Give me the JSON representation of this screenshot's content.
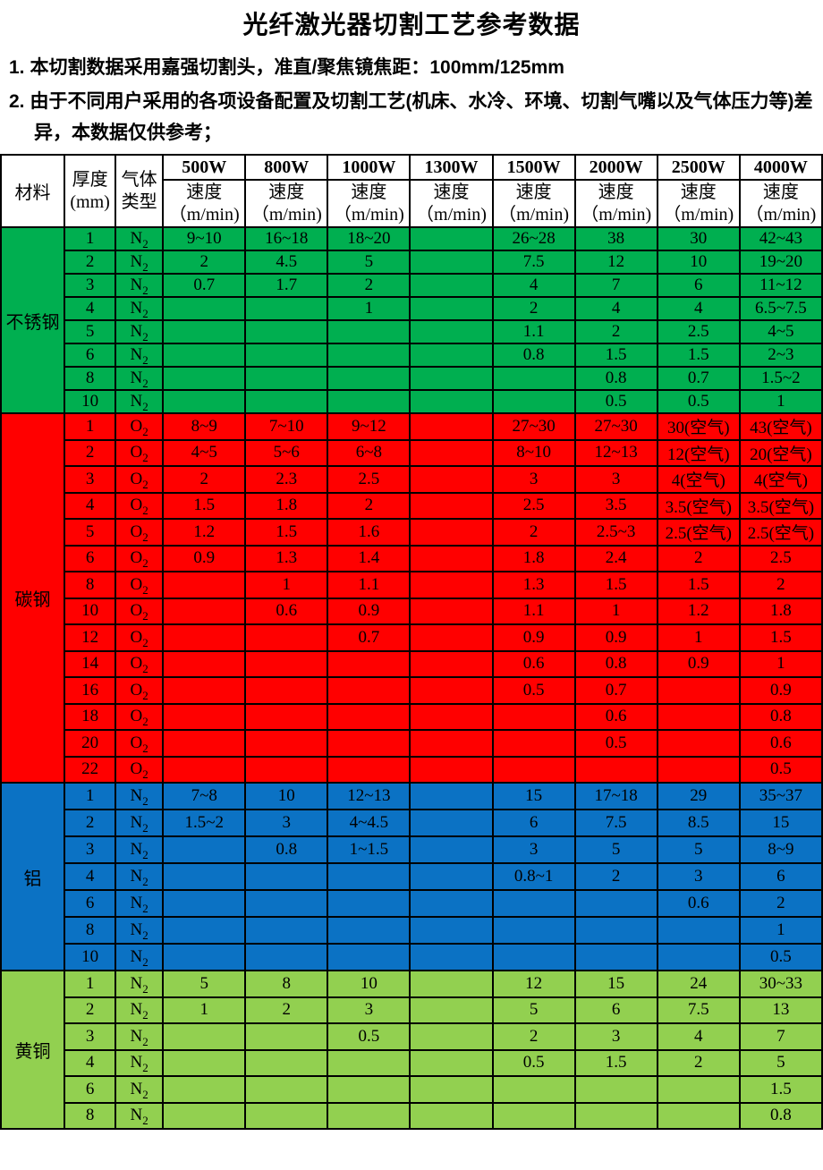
{
  "title": "光纤激光器切割工艺参考数据",
  "notes": [
    {
      "num": "1.",
      "text": "本切割数据采用嘉强切割头，准直/聚焦镜焦距：100mm/125mm"
    },
    {
      "num": "2.",
      "text": "由于不同用户采用的各项设备配置及切割工艺(机床、水冷、环境、切割气嘴以及气体压力等)差异，本数据仅供参考；"
    }
  ],
  "table": {
    "header": {
      "material": "材料",
      "thickness_line1": "厚度",
      "thickness_line2": "(mm)",
      "gas_line1": "气体",
      "gas_line2": "类型",
      "powers": [
        "500W",
        "800W",
        "1000W",
        "1300W",
        "1500W",
        "2000W",
        "2500W",
        "4000W"
      ],
      "speed_line1": "速度",
      "speed_line2": "（m/min)"
    },
    "sections": [
      {
        "material": "不锈钢",
        "color": "#00AF50",
        "rows": [
          {
            "thickness": "1",
            "gas": "N2",
            "speeds": [
              "9~10",
              "16~18",
              "18~20",
              "",
              "26~28",
              "38",
              "30",
              "42~43"
            ]
          },
          {
            "thickness": "2",
            "gas": "N2",
            "speeds": [
              "2",
              "4.5",
              "5",
              "",
              "7.5",
              "12",
              "10",
              "19~20"
            ]
          },
          {
            "thickness": "3",
            "gas": "N2",
            "speeds": [
              "0.7",
              "1.7",
              "2",
              "",
              "4",
              "7",
              "6",
              "11~12"
            ]
          },
          {
            "thickness": "4",
            "gas": "N2",
            "speeds": [
              "",
              "",
              "1",
              "",
              "2",
              "4",
              "4",
              "6.5~7.5"
            ]
          },
          {
            "thickness": "5",
            "gas": "N2",
            "speeds": [
              "",
              "",
              "",
              "",
              "1.1",
              "2",
              "2.5",
              "4~5"
            ]
          },
          {
            "thickness": "6",
            "gas": "N2",
            "speeds": [
              "",
              "",
              "",
              "",
              "0.8",
              "1.5",
              "1.5",
              "2~3"
            ]
          },
          {
            "thickness": "8",
            "gas": "N2",
            "speeds": [
              "",
              "",
              "",
              "",
              "",
              "0.8",
              "0.7",
              "1.5~2"
            ]
          },
          {
            "thickness": "10",
            "gas": "N2",
            "speeds": [
              "",
              "",
              "",
              "",
              "",
              "0.5",
              "0.5",
              "1"
            ]
          }
        ]
      },
      {
        "material": "碳钢",
        "color": "#FF0000",
        "rows": [
          {
            "thickness": "1",
            "gas": "O2",
            "speeds": [
              "8~9",
              "7~10",
              "9~12",
              "",
              "27~30",
              "27~30",
              "30(空气)",
              "43(空气)"
            ]
          },
          {
            "thickness": "2",
            "gas": "O2",
            "speeds": [
              "4~5",
              "5~6",
              "6~8",
              "",
              "8~10",
              "12~13",
              "12(空气)",
              "20(空气)"
            ]
          },
          {
            "thickness": "3",
            "gas": "O2",
            "speeds": [
              "2",
              "2.3",
              "2.5",
              "",
              "3",
              "3",
              "4(空气)",
              "4(空气)"
            ]
          },
          {
            "thickness": "4",
            "gas": "O2",
            "speeds": [
              "1.5",
              "1.8",
              "2",
              "",
              "2.5",
              "3.5",
              "3.5(空气)",
              "3.5(空气)"
            ]
          },
          {
            "thickness": "5",
            "gas": "O2",
            "speeds": [
              "1.2",
              "1.5",
              "1.6",
              "",
              "2",
              "2.5~3",
              "2.5(空气)",
              "2.5(空气)"
            ]
          },
          {
            "thickness": "6",
            "gas": "O2",
            "speeds": [
              "0.9",
              "1.3",
              "1.4",
              "",
              "1.8",
              "2.4",
              "2",
              "2.5"
            ]
          },
          {
            "thickness": "8",
            "gas": "O2",
            "speeds": [
              "",
              "1",
              "1.1",
              "",
              "1.3",
              "1.5",
              "1.5",
              "2"
            ]
          },
          {
            "thickness": "10",
            "gas": "O2",
            "speeds": [
              "",
              "0.6",
              "0.9",
              "",
              "1.1",
              "1",
              "1.2",
              "1.8"
            ]
          },
          {
            "thickness": "12",
            "gas": "O2",
            "speeds": [
              "",
              "",
              "0.7",
              "",
              "0.9",
              "0.9",
              "1",
              "1.5"
            ]
          },
          {
            "thickness": "14",
            "gas": "O2",
            "speeds": [
              "",
              "",
              "",
              "",
              "0.6",
              "0.8",
              "0.9",
              "1"
            ]
          },
          {
            "thickness": "16",
            "gas": "O2",
            "speeds": [
              "",
              "",
              "",
              "",
              "0.5",
              "0.7",
              "",
              "0.9"
            ]
          },
          {
            "thickness": "18",
            "gas": "O2",
            "speeds": [
              "",
              "",
              "",
              "",
              "",
              "0.6",
              "",
              "0.8"
            ]
          },
          {
            "thickness": "20",
            "gas": "O2",
            "speeds": [
              "",
              "",
              "",
              "",
              "",
              "0.5",
              "",
              "0.6"
            ]
          },
          {
            "thickness": "22",
            "gas": "O2",
            "speeds": [
              "",
              "",
              "",
              "",
              "",
              "",
              "",
              "0.5"
            ]
          }
        ]
      },
      {
        "material": "铝",
        "color": "#0B72C4",
        "rows": [
          {
            "thickness": "1",
            "gas": "N2",
            "speeds": [
              "7~8",
              "10",
              "12~13",
              "",
              "15",
              "17~18",
              "29",
              "35~37"
            ]
          },
          {
            "thickness": "2",
            "gas": "N2",
            "speeds": [
              "1.5~2",
              "3",
              "4~4.5",
              "",
              "6",
              "7.5",
              "8.5",
              "15"
            ]
          },
          {
            "thickness": "3",
            "gas": "N2",
            "speeds": [
              "",
              "0.8",
              "1~1.5",
              "",
              "3",
              "5",
              "5",
              "8~9"
            ]
          },
          {
            "thickness": "4",
            "gas": "N2",
            "speeds": [
              "",
              "",
              "",
              "",
              "0.8~1",
              "2",
              "3",
              "6"
            ]
          },
          {
            "thickness": "6",
            "gas": "N2",
            "speeds": [
              "",
              "",
              "",
              "",
              "",
              "",
              "0.6",
              "2"
            ]
          },
          {
            "thickness": "8",
            "gas": "N2",
            "speeds": [
              "",
              "",
              "",
              "",
              "",
              "",
              "",
              "1"
            ]
          },
          {
            "thickness": "10",
            "gas": "N2",
            "speeds": [
              "",
              "",
              "",
              "",
              "",
              "",
              "",
              "0.5"
            ]
          }
        ]
      },
      {
        "material": "黄铜",
        "color": "#92D050",
        "rows": [
          {
            "thickness": "1",
            "gas": "N2",
            "speeds": [
              "5",
              "8",
              "10",
              "",
              "12",
              "15",
              "24",
              "30~33"
            ]
          },
          {
            "thickness": "2",
            "gas": "N2",
            "speeds": [
              "1",
              "2",
              "3",
              "",
              "5",
              "6",
              "7.5",
              "13"
            ]
          },
          {
            "thickness": "3",
            "gas": "N2",
            "speeds": [
              "",
              "",
              "0.5",
              "",
              "2",
              "3",
              "4",
              "7"
            ]
          },
          {
            "thickness": "4",
            "gas": "N2",
            "speeds": [
              "",
              "",
              "",
              "",
              "0.5",
              "1.5",
              "2",
              "5"
            ]
          },
          {
            "thickness": "6",
            "gas": "N2",
            "speeds": [
              "",
              "",
              "",
              "",
              "",
              "",
              "",
              "1.5"
            ]
          },
          {
            "thickness": "8",
            "gas": "N2",
            "speeds": [
              "",
              "",
              "",
              "",
              "",
              "",
              "",
              "0.8"
            ]
          }
        ]
      }
    ]
  }
}
